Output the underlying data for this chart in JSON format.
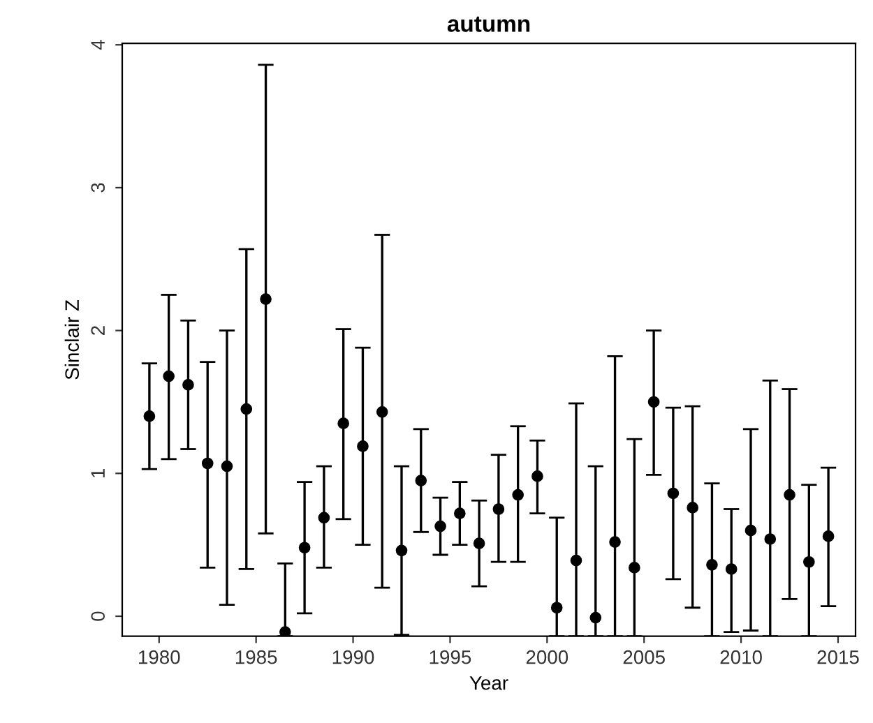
{
  "chart_data": {
    "type": "scatter",
    "title": "autumn",
    "xlabel": "Year",
    "ylabel": "Sinclair Z",
    "x": [
      1979.5,
      1980.5,
      1981.5,
      1982.5,
      1983.5,
      1984.5,
      1985.5,
      1986.5,
      1987.5,
      1988.5,
      1989.5,
      1990.5,
      1991.5,
      1992.5,
      1993.5,
      1994.5,
      1995.5,
      1996.5,
      1997.5,
      1998.5,
      1999.5,
      2000.5,
      2001.5,
      2002.5,
      2003.5,
      2004.5,
      2005.5,
      2006.5,
      2007.5,
      2008.5,
      2009.5,
      2010.5,
      2011.5,
      2012.5,
      2013.5,
      2014.5
    ],
    "series": [
      {
        "color": "#000000",
        "values": [
          1.4,
          1.68,
          1.62,
          1.07,
          1.05,
          1.45,
          2.22,
          -0.11,
          0.48,
          0.69,
          1.35,
          1.19,
          1.43,
          0.46,
          0.95,
          0.63,
          0.72,
          0.51,
          0.75,
          0.85,
          0.98,
          0.06,
          0.39,
          -0.01,
          0.52,
          0.34,
          1.5,
          0.86,
          0.76,
          0.36,
          0.33,
          0.6,
          0.54,
          0.85,
          0.38,
          0.56
        ],
        "errors": [
          [
            1.03,
            1.77
          ],
          [
            1.1,
            2.25
          ],
          [
            1.17,
            2.07
          ],
          [
            0.34,
            1.78
          ],
          [
            0.08,
            2.0
          ],
          [
            0.33,
            2.57
          ],
          [
            0.58,
            3.86
          ],
          [
            -0.14,
            0.37
          ],
          [
            0.02,
            0.94
          ],
          [
            0.34,
            1.05
          ],
          [
            0.68,
            2.01
          ],
          [
            0.5,
            1.88
          ],
          [
            0.2,
            2.67
          ],
          [
            -0.13,
            1.05
          ],
          [
            0.59,
            1.31
          ],
          [
            0.43,
            0.83
          ],
          [
            0.5,
            0.94
          ],
          [
            0.21,
            0.81
          ],
          [
            0.38,
            1.13
          ],
          [
            0.38,
            1.33
          ],
          [
            0.72,
            1.23
          ],
          [
            -0.14,
            0.69
          ],
          [
            -0.14,
            1.49
          ],
          [
            -0.14,
            1.05
          ],
          [
            -0.14,
            1.82
          ],
          [
            -0.14,
            1.24
          ],
          [
            0.99,
            2.0
          ],
          [
            0.26,
            1.46
          ],
          [
            0.06,
            1.47
          ],
          [
            -0.14,
            0.93
          ],
          [
            -0.11,
            0.75
          ],
          [
            -0.1,
            1.31
          ],
          [
            -0.14,
            1.65
          ],
          [
            0.12,
            1.59
          ],
          [
            -0.14,
            0.92
          ],
          [
            0.07,
            1.04
          ]
        ]
      }
    ],
    "marker": "circle",
    "xlim": [
      1978.1,
      2015.9
    ],
    "xticks": [
      1980,
      1985,
      1990,
      1995,
      2000,
      2005,
      2010,
      2015
    ],
    "ylim": [
      -0.14,
      4.01
    ],
    "yticks": [
      0,
      1,
      2,
      3,
      4
    ],
    "grid": false,
    "legend": false
  }
}
